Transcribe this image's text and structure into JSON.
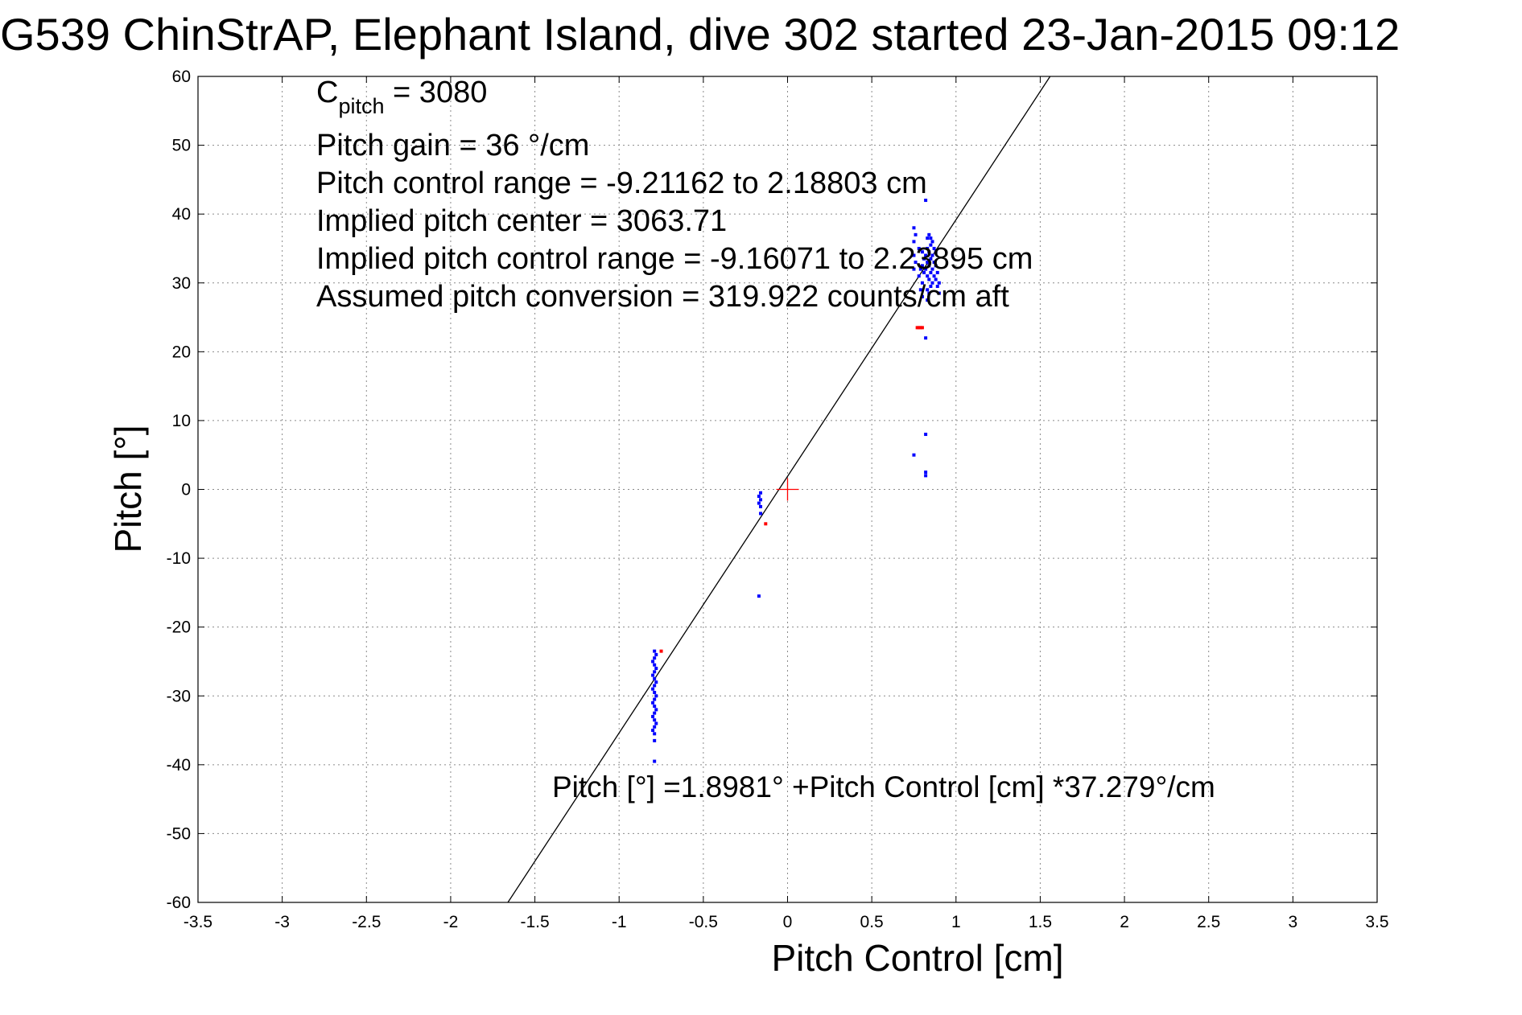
{
  "chart_data": {
    "type": "scatter",
    "title": "G539 ChinStrAP, Elephant Island, dive 302 started 23-Jan-2015 09:12",
    "xlabel": "Pitch Control [cm]",
    "ylabel": "Pitch [°]",
    "xlim": [
      -3.5,
      3.5
    ],
    "ylim": [
      -60,
      60
    ],
    "xticks": [
      "-3.5",
      "-3",
      "-2.5",
      "-2",
      "-1.5",
      "-1",
      "-0.5",
      "0",
      "0.5",
      "1",
      "1.5",
      "2",
      "2.5",
      "3",
      "3.5"
    ],
    "yticks": [
      "60",
      "50",
      "40",
      "30",
      "20",
      "10",
      "0",
      "-10",
      "-20",
      "-30",
      "-40",
      "-50",
      "-60"
    ],
    "grid": true,
    "colors": {
      "good": "#0000ff",
      "flagged": "#ff0000",
      "fit": "#000000",
      "center": "#ff0000"
    },
    "annotations": {
      "c_pitch_symbol": "C",
      "c_pitch_subscript": "pitch",
      "c_pitch_value": " = 3080",
      "pitch_gain": "Pitch gain = 36 °/cm",
      "control_range": "Pitch control range = -9.21162 to 2.18803 cm",
      "implied_center": "Implied pitch center = 3063.71",
      "implied_range": "Implied pitch control range = -9.16071 to 2.23895 cm",
      "conversion": "Assumed pitch conversion = 319.922 counts/cm aft",
      "fit_equation": "Pitch [°] =1.8981° +Pitch Control [cm] *37.279°/cm"
    },
    "fit_line": {
      "intercept": 1.8981,
      "slope": 37.279
    },
    "center_marker": {
      "x": 0,
      "y": 0
    },
    "series": [
      {
        "role": "good",
        "points": [
          [
            -0.79,
            -23.5
          ],
          [
            -0.79,
            -24.5
          ],
          [
            -0.79,
            -25.5
          ],
          [
            -0.79,
            -26.5
          ],
          [
            -0.79,
            -27.5
          ],
          [
            -0.79,
            -28.5
          ],
          [
            -0.79,
            -29.5
          ],
          [
            -0.79,
            -30.5
          ],
          [
            -0.79,
            -31.5
          ],
          [
            -0.79,
            -32.5
          ],
          [
            -0.79,
            -33.5
          ],
          [
            -0.79,
            -34.5
          ],
          [
            -0.79,
            -35.5
          ],
          [
            -0.79,
            -36.5
          ],
          [
            -0.78,
            -24.0
          ],
          [
            -0.78,
            -26.0
          ],
          [
            -0.78,
            -28.0
          ],
          [
            -0.78,
            -30.0
          ],
          [
            -0.78,
            -32.0
          ],
          [
            -0.78,
            -34.0
          ],
          [
            -0.8,
            -25.0
          ],
          [
            -0.8,
            -27.0
          ],
          [
            -0.8,
            -29.0
          ],
          [
            -0.8,
            -31.0
          ],
          [
            -0.8,
            -33.0
          ],
          [
            -0.8,
            -35.0
          ],
          [
            -0.79,
            -39.5
          ],
          [
            -0.16,
            -0.5
          ],
          [
            -0.16,
            -1.5
          ],
          [
            -0.16,
            -2.5
          ],
          [
            -0.16,
            -3.5
          ],
          [
            -0.17,
            -1.0
          ],
          [
            -0.17,
            -2.0
          ],
          [
            -0.17,
            -15.5
          ],
          [
            0.75,
            38.0
          ],
          [
            0.75,
            36.0
          ],
          [
            0.75,
            34.0
          ],
          [
            0.75,
            32.0
          ],
          [
            0.75,
            5.0
          ],
          [
            0.76,
            33.0
          ],
          [
            0.76,
            37.0
          ],
          [
            0.78,
            31.0
          ],
          [
            0.78,
            35.0
          ],
          [
            0.8,
            30.0
          ],
          [
            0.8,
            32.5
          ],
          [
            0.8,
            34.5
          ],
          [
            0.8,
            28.0
          ],
          [
            0.82,
            42.0
          ],
          [
            0.82,
            22.0
          ],
          [
            0.82,
            8.0
          ],
          [
            0.82,
            2.5
          ],
          [
            0.82,
            2.0
          ],
          [
            0.83,
            27.5
          ],
          [
            0.83,
            29.0
          ],
          [
            0.83,
            31.0
          ],
          [
            0.83,
            33.0
          ],
          [
            0.83,
            35.0
          ],
          [
            0.83,
            36.5
          ],
          [
            0.84,
            28.5
          ],
          [
            0.84,
            30.5
          ],
          [
            0.84,
            32.5
          ],
          [
            0.84,
            34.5
          ],
          [
            0.84,
            37.0
          ],
          [
            0.85,
            29.5
          ],
          [
            0.85,
            31.5
          ],
          [
            0.85,
            33.5
          ],
          [
            0.85,
            35.5
          ],
          [
            0.85,
            36.5
          ],
          [
            0.86,
            30.0
          ],
          [
            0.86,
            32.0
          ],
          [
            0.86,
            34.0
          ],
          [
            0.86,
            36.0
          ],
          [
            0.87,
            31.0
          ],
          [
            0.87,
            33.0
          ],
          [
            0.87,
            35.0
          ],
          [
            0.88,
            30.5
          ],
          [
            0.88,
            32.5
          ],
          [
            0.88,
            34.5
          ],
          [
            0.89,
            29.5
          ],
          [
            0.89,
            31.5
          ],
          [
            0.9,
            30.0
          ],
          [
            0.9,
            28.5
          ],
          [
            0.81,
            31.5
          ],
          [
            0.81,
            33.5
          ],
          [
            0.82,
            32.0
          ],
          [
            0.82,
            34.0
          ],
          [
            0.79,
            32.0
          ],
          [
            0.79,
            29.0
          ]
        ]
      },
      {
        "role": "flagged",
        "points": [
          [
            -0.13,
            -5.0
          ],
          [
            -0.75,
            -23.5
          ],
          [
            0.77,
            23.5
          ],
          [
            0.78,
            23.5
          ],
          [
            0.79,
            23.5
          ],
          [
            0.8,
            23.5
          ]
        ]
      }
    ]
  }
}
